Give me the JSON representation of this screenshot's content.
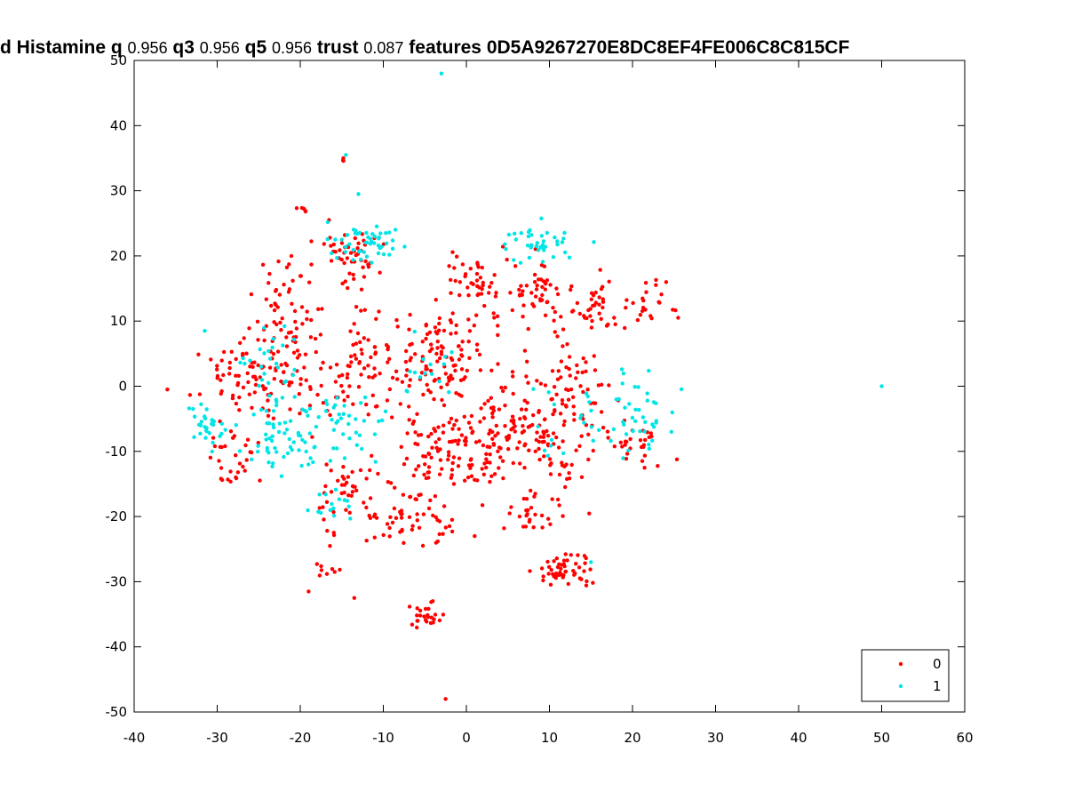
{
  "title_parts": [
    {
      "text": "d Histamine q ",
      "num": false
    },
    {
      "text": "0.956",
      "num": true
    },
    {
      "text": " q3 ",
      "num": false
    },
    {
      "text": "0.956",
      "num": true
    },
    {
      "text": " q5 ",
      "num": false
    },
    {
      "text": "0.956",
      "num": true
    },
    {
      "text": " trust ",
      "num": false
    },
    {
      "text": "0.087",
      "num": true
    },
    {
      "text": " features ",
      "num": false
    },
    {
      "text": "0D5A9267270E8DC8EF4FE006C8C815CF",
      "num": false
    }
  ],
  "chart_data": {
    "type": "scatter",
    "title": "d Histamine q 0.956 q3 0.956 q5 0.956 trust 0.087 features 0D5A9267270E8DC8EF4FE006C8C815CF",
    "xlabel": "",
    "ylabel": "",
    "xlim": [
      -40,
      60
    ],
    "ylim": [
      -50,
      50
    ],
    "xticks": [
      -40,
      -30,
      -20,
      -10,
      0,
      10,
      20,
      30,
      40,
      50,
      60
    ],
    "yticks": [
      -50,
      -40,
      -30,
      -20,
      -10,
      0,
      10,
      20,
      30,
      40,
      50
    ],
    "xtick_labels": [
      "-40",
      "-30",
      "-20",
      "-10",
      "0",
      "10",
      "20",
      "30",
      "40",
      "50",
      "60"
    ],
    "ytick_labels": [
      "-50",
      "-40",
      "-30",
      "-20",
      "-10",
      "0",
      "10",
      "20",
      "30",
      "40",
      "50"
    ],
    "grid": false,
    "legend_position": "bottom-right",
    "series": [
      {
        "name": "0",
        "color": "#ff0000",
        "clusters": [
          {
            "cx": -14,
            "cy": 20,
            "sx": 2.2,
            "sy": 3,
            "n": 50
          },
          {
            "cx": -22,
            "cy": 13,
            "sx": 2.5,
            "sy": 4,
            "n": 40
          },
          {
            "cx": -27,
            "cy": 2,
            "sx": 3,
            "sy": 4,
            "n": 60
          },
          {
            "cx": -20,
            "cy": 2,
            "sx": 3,
            "sy": 5,
            "n": 70
          },
          {
            "cx": -12,
            "cy": 3,
            "sx": 3,
            "sy": 5,
            "n": 70
          },
          {
            "cx": -5,
            "cy": 3,
            "sx": 3,
            "sy": 5,
            "n": 60
          },
          {
            "cx": -1,
            "cy": 4,
            "sx": 2,
            "sy": 4,
            "n": 40
          },
          {
            "cx": -28,
            "cy": -11,
            "sx": 2.5,
            "sy": 3,
            "n": 30
          },
          {
            "cx": -14,
            "cy": -17,
            "sx": 3,
            "sy": 4,
            "n": 50
          },
          {
            "cx": -6,
            "cy": -20,
            "sx": 2.5,
            "sy": 3,
            "n": 50
          },
          {
            "cx": -3,
            "cy": -10,
            "sx": 3,
            "sy": 4,
            "n": 70
          },
          {
            "cx": 3,
            "cy": -10,
            "sx": 3,
            "sy": 4,
            "n": 60
          },
          {
            "cx": 1,
            "cy": 16,
            "sx": 3,
            "sy": 4,
            "n": 50
          },
          {
            "cx": 8,
            "cy": 14,
            "sx": 3,
            "sy": 3,
            "n": 50
          },
          {
            "cx": 16,
            "cy": 12,
            "sx": 3,
            "sy": 3,
            "n": 40
          },
          {
            "cx": 22,
            "cy": 12,
            "sx": 2,
            "sy": 3,
            "n": 20
          },
          {
            "cx": 7,
            "cy": -3,
            "sx": 3,
            "sy": 4,
            "n": 60
          },
          {
            "cx": 13,
            "cy": 0,
            "sx": 3,
            "sy": 4,
            "n": 50
          },
          {
            "cx": 10,
            "cy": -10,
            "sx": 3,
            "sy": 4,
            "n": 50
          },
          {
            "cx": 8,
            "cy": -19,
            "sx": 3,
            "sy": 2,
            "n": 30
          },
          {
            "cx": 20,
            "cy": -9,
            "sx": 3,
            "sy": 3,
            "n": 30
          },
          {
            "cx": 12,
            "cy": -28,
            "sx": 2,
            "sy": 1.5,
            "n": 50
          },
          {
            "cx": -5,
            "cy": -35,
            "sx": 1.5,
            "sy": 1.5,
            "n": 25
          },
          {
            "cx": -17,
            "cy": -28,
            "sx": 1,
            "sy": 1,
            "n": 8
          },
          {
            "cx": -20,
            "cy": 27,
            "sx": 0.8,
            "sy": 0.3,
            "n": 5
          },
          {
            "cx": -15,
            "cy": 35,
            "sx": 0.4,
            "sy": 0.4,
            "n": 3
          }
        ],
        "points": [
          [
            -36,
            -0.5
          ],
          [
            25.5,
            10.5
          ],
          [
            -13.5,
            -32.5
          ],
          [
            -2.5,
            -48
          ],
          [
            -19,
            -31.5
          ],
          [
            1,
            -23
          ]
        ]
      },
      {
        "name": "1",
        "color": "#00e5e5",
        "clusters": [
          {
            "cx": -12,
            "cy": 22,
            "sx": 3,
            "sy": 2,
            "n": 50
          },
          {
            "cx": -31,
            "cy": -6,
            "sx": 1.5,
            "sy": 2,
            "n": 30
          },
          {
            "cx": -22,
            "cy": -7,
            "sx": 3,
            "sy": 4,
            "n": 60
          },
          {
            "cx": -15,
            "cy": -6,
            "sx": 3,
            "sy": 4,
            "n": 40
          },
          {
            "cx": -24,
            "cy": 4,
            "sx": 2.5,
            "sy": 3,
            "n": 25
          },
          {
            "cx": 9,
            "cy": 22,
            "sx": 3,
            "sy": 2,
            "n": 40
          },
          {
            "cx": 21,
            "cy": -4,
            "sx": 3,
            "sy": 4,
            "n": 40
          },
          {
            "cx": 13,
            "cy": -5,
            "sx": 3,
            "sy": 4,
            "n": 20
          },
          {
            "cx": -16,
            "cy": -18,
            "sx": 2,
            "sy": 2,
            "n": 15
          },
          {
            "cx": -6,
            "cy": 3,
            "sx": 3,
            "sy": 3,
            "n": 15
          }
        ],
        "points": [
          [
            50,
            0
          ],
          [
            -3,
            48
          ],
          [
            -14.5,
            35.5
          ],
          [
            -13,
            29.5
          ],
          [
            15,
            -27
          ],
          [
            -31.5,
            8.5
          ]
        ]
      }
    ]
  }
}
